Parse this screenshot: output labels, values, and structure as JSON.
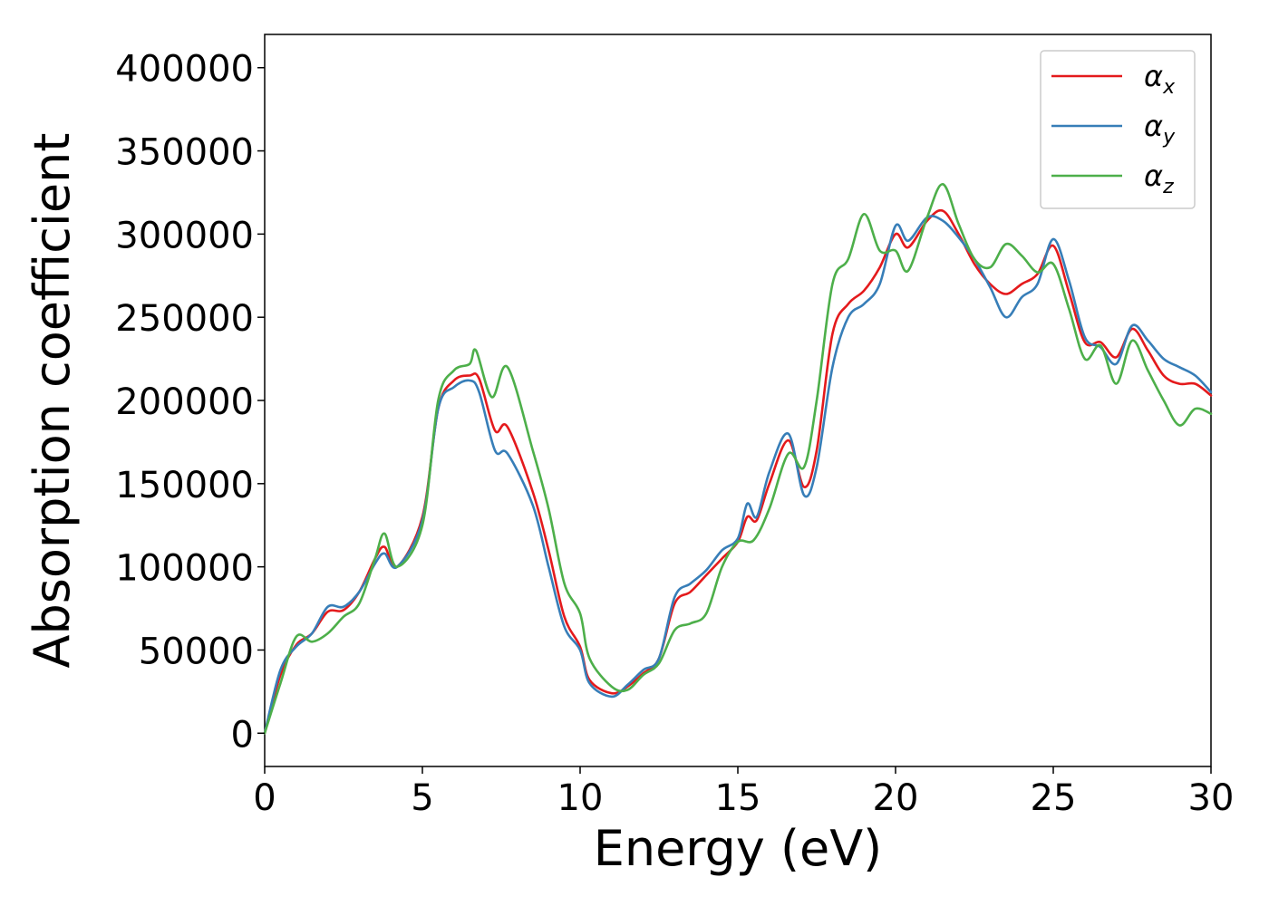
{
  "chart_data": {
    "type": "line",
    "title": "",
    "xlabel": "Energy (eV)",
    "ylabel": "Absorption coefficient",
    "xlim": [
      0,
      30
    ],
    "ylim": [
      -20000,
      420000
    ],
    "xticks": [
      0,
      5,
      10,
      15,
      20,
      25,
      30
    ],
    "xtick_labels": [
      "0",
      "5",
      "10",
      "15",
      "20",
      "25",
      "30"
    ],
    "yticks": [
      0,
      50000,
      100000,
      150000,
      200000,
      250000,
      300000,
      350000,
      400000
    ],
    "ytick_labels": [
      "0",
      "50000",
      "100000",
      "150000",
      "200000",
      "250000",
      "300000",
      "350000",
      "400000"
    ],
    "grid": false,
    "legend_position": "top-right",
    "series": [
      {
        "name": "αx",
        "symbol": "α",
        "subscript": "x",
        "color": "#e41a1c",
        "points": [
          [
            0,
            0
          ],
          [
            0.5,
            35000
          ],
          [
            1,
            53000
          ],
          [
            1.5,
            60000
          ],
          [
            2,
            73000
          ],
          [
            2.5,
            74000
          ],
          [
            3,
            85000
          ],
          [
            3.5,
            105000
          ],
          [
            3.8,
            112000
          ],
          [
            4.2,
            100000
          ],
          [
            5,
            130000
          ],
          [
            5.5,
            195000
          ],
          [
            6,
            212000
          ],
          [
            6.5,
            215000
          ],
          [
            6.8,
            213000
          ],
          [
            7.3,
            182000
          ],
          [
            7.7,
            184000
          ],
          [
            8.5,
            145000
          ],
          [
            9,
            110000
          ],
          [
            9.5,
            70000
          ],
          [
            10,
            52000
          ],
          [
            10.3,
            32000
          ],
          [
            11,
            24000
          ],
          [
            11.5,
            28000
          ],
          [
            12,
            36000
          ],
          [
            12.5,
            45000
          ],
          [
            13,
            78000
          ],
          [
            13.5,
            85000
          ],
          [
            14,
            95000
          ],
          [
            14.5,
            105000
          ],
          [
            15,
            115000
          ],
          [
            15.3,
            130000
          ],
          [
            15.6,
            128000
          ],
          [
            16,
            150000
          ],
          [
            16.6,
            176000
          ],
          [
            17.1,
            148000
          ],
          [
            17.5,
            170000
          ],
          [
            18,
            240000
          ],
          [
            18.5,
            258000
          ],
          [
            19,
            266000
          ],
          [
            19.5,
            280000
          ],
          [
            20,
            300000
          ],
          [
            20.4,
            292000
          ],
          [
            21,
            308000
          ],
          [
            21.5,
            314000
          ],
          [
            22,
            300000
          ],
          [
            22.5,
            282000
          ],
          [
            23,
            270000
          ],
          [
            23.5,
            264000
          ],
          [
            24,
            270000
          ],
          [
            24.5,
            276000
          ],
          [
            25,
            293000
          ],
          [
            25.5,
            265000
          ],
          [
            26,
            235000
          ],
          [
            26.5,
            235000
          ],
          [
            27,
            226000
          ],
          [
            27.5,
            243000
          ],
          [
            28,
            230000
          ],
          [
            28.5,
            215000
          ],
          [
            29,
            210000
          ],
          [
            29.5,
            210000
          ],
          [
            30,
            203000
          ]
        ]
      },
      {
        "name": "αy",
        "symbol": "α",
        "subscript": "y",
        "color": "#377eb8",
        "points": [
          [
            0,
            0
          ],
          [
            0.5,
            38000
          ],
          [
            1,
            52000
          ],
          [
            1.5,
            60000
          ],
          [
            2,
            76000
          ],
          [
            2.5,
            76000
          ],
          [
            3,
            85000
          ],
          [
            3.5,
            102000
          ],
          [
            3.8,
            108000
          ],
          [
            4.2,
            100000
          ],
          [
            5,
            128000
          ],
          [
            5.5,
            195000
          ],
          [
            6,
            208000
          ],
          [
            6.5,
            212000
          ],
          [
            6.8,
            205000
          ],
          [
            7.3,
            170000
          ],
          [
            7.7,
            168000
          ],
          [
            8.5,
            137000
          ],
          [
            9,
            100000
          ],
          [
            9.5,
            64000
          ],
          [
            10,
            50000
          ],
          [
            10.3,
            30000
          ],
          [
            11,
            22000
          ],
          [
            11.5,
            29000
          ],
          [
            12,
            38000
          ],
          [
            12.5,
            45000
          ],
          [
            13,
            82000
          ],
          [
            13.5,
            90000
          ],
          [
            14,
            98000
          ],
          [
            14.5,
            110000
          ],
          [
            15,
            117000
          ],
          [
            15.3,
            138000
          ],
          [
            15.6,
            130000
          ],
          [
            16,
            157000
          ],
          [
            16.6,
            180000
          ],
          [
            17.1,
            143000
          ],
          [
            17.5,
            160000
          ],
          [
            18,
            220000
          ],
          [
            18.5,
            250000
          ],
          [
            19,
            258000
          ],
          [
            19.5,
            270000
          ],
          [
            20,
            305000
          ],
          [
            20.4,
            296000
          ],
          [
            21,
            310000
          ],
          [
            21.5,
            308000
          ],
          [
            22,
            298000
          ],
          [
            22.5,
            285000
          ],
          [
            23,
            268000
          ],
          [
            23.5,
            250000
          ],
          [
            24,
            262000
          ],
          [
            24.5,
            270000
          ],
          [
            25,
            297000
          ],
          [
            25.5,
            272000
          ],
          [
            26,
            238000
          ],
          [
            26.5,
            232000
          ],
          [
            27,
            222000
          ],
          [
            27.5,
            245000
          ],
          [
            28,
            236000
          ],
          [
            28.5,
            225000
          ],
          [
            29,
            220000
          ],
          [
            29.5,
            215000
          ],
          [
            30,
            205000
          ]
        ]
      },
      {
        "name": "αz",
        "symbol": "α",
        "subscript": "z",
        "color": "#4daf4a",
        "points": [
          [
            0,
            0
          ],
          [
            0.5,
            30000
          ],
          [
            1,
            58000
          ],
          [
            1.5,
            55000
          ],
          [
            2,
            60000
          ],
          [
            2.5,
            70000
          ],
          [
            3,
            78000
          ],
          [
            3.5,
            105000
          ],
          [
            3.8,
            120000
          ],
          [
            4.2,
            100000
          ],
          [
            5,
            125000
          ],
          [
            5.5,
            200000
          ],
          [
            6,
            218000
          ],
          [
            6.5,
            222000
          ],
          [
            6.7,
            230000
          ],
          [
            7.2,
            202000
          ],
          [
            7.7,
            220000
          ],
          [
            8.5,
            170000
          ],
          [
            9,
            135000
          ],
          [
            9.5,
            90000
          ],
          [
            10,
            72000
          ],
          [
            10.3,
            45000
          ],
          [
            11,
            28000
          ],
          [
            11.5,
            26000
          ],
          [
            12,
            35000
          ],
          [
            12.5,
            42000
          ],
          [
            13,
            62000
          ],
          [
            13.5,
            66000
          ],
          [
            14,
            72000
          ],
          [
            14.5,
            100000
          ],
          [
            15,
            115000
          ],
          [
            15.5,
            116000
          ],
          [
            16,
            135000
          ],
          [
            16.6,
            168000
          ],
          [
            17.1,
            160000
          ],
          [
            17.5,
            200000
          ],
          [
            18,
            270000
          ],
          [
            18.5,
            285000
          ],
          [
            19,
            312000
          ],
          [
            19.5,
            290000
          ],
          [
            20,
            290000
          ],
          [
            20.4,
            278000
          ],
          [
            21,
            310000
          ],
          [
            21.5,
            330000
          ],
          [
            22,
            306000
          ],
          [
            22.5,
            285000
          ],
          [
            23,
            280000
          ],
          [
            23.5,
            294000
          ],
          [
            24,
            287000
          ],
          [
            24.5,
            277000
          ],
          [
            25,
            282000
          ],
          [
            25.5,
            255000
          ],
          [
            26,
            225000
          ],
          [
            26.5,
            233000
          ],
          [
            27,
            210000
          ],
          [
            27.5,
            236000
          ],
          [
            28,
            218000
          ],
          [
            28.5,
            200000
          ],
          [
            29,
            185000
          ],
          [
            29.5,
            195000
          ],
          [
            30,
            192000
          ]
        ]
      }
    ]
  }
}
